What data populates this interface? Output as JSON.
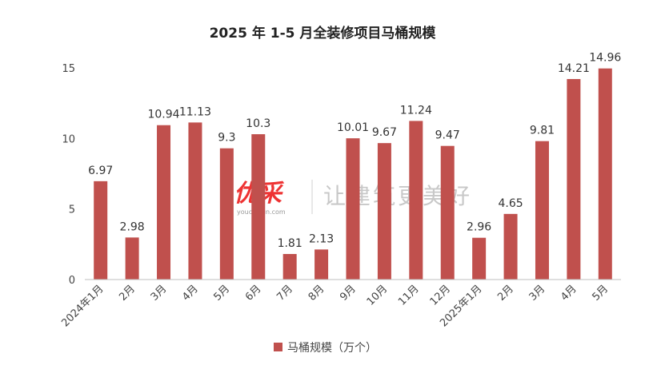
{
  "chart_data": {
    "type": "bar",
    "title": "2025 年 1-5 月全装修项目马桶规模",
    "categories": [
      "2024年1月",
      "2月",
      "3月",
      "4月",
      "5月",
      "6月",
      "7月",
      "8月",
      "9月",
      "10月",
      "11月",
      "12月",
      "2025年1月",
      "2月",
      "3月",
      "4月",
      "5月"
    ],
    "series": [
      {
        "name": "马桶规模（万个）",
        "values": [
          6.97,
          2.98,
          10.94,
          11.13,
          9.3,
          10.3,
          1.81,
          2.13,
          10.01,
          9.67,
          11.24,
          9.47,
          2.96,
          4.65,
          9.81,
          14.21,
          14.96
        ],
        "labels": [
          "6.97",
          "2.98",
          "10.94",
          "11.13",
          "9.3",
          "10.3",
          "1.81",
          "2.13",
          "10.01",
          "9.67",
          "11.24",
          "9.47",
          "2.96",
          "4.65",
          "9.81",
          "14.21",
          "14.96"
        ]
      }
    ],
    "yticks": [
      "0",
      "5",
      "10",
      "15"
    ],
    "ylim": [
      0,
      15
    ],
    "grid": false,
    "legend": "bottom",
    "colors": {
      "bar": "#c0504d",
      "axis": "#bfbfbf"
    }
  },
  "watermark": {
    "brand": "优采",
    "site": "youcaiyun.com",
    "slogan": "让建筑更美好"
  }
}
